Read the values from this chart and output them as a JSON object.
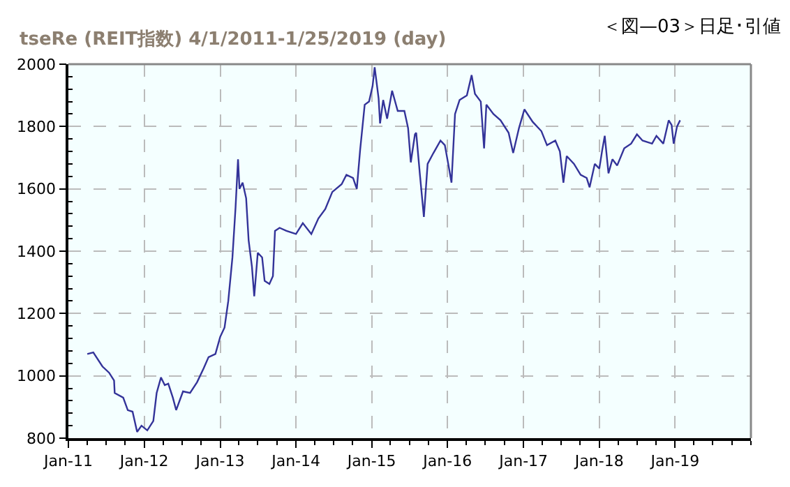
{
  "chart_data": {
    "type": "line",
    "title": "tseRe (REIT指数) 4/1/2011-1/25/2019 (day)",
    "subtitle": "＜図—03＞日足･引値",
    "x": [
      "2011-04-02",
      "2011-05-01",
      "2011-06-14",
      "2011-07-16",
      "2011-08-09",
      "2011-08-12",
      "2011-09-22",
      "2011-10-14",
      "2011-11-06",
      "2011-11-28",
      "2011-12-19",
      "2012-01-16",
      "2012-02-14",
      "2012-03-01",
      "2012-03-22",
      "2012-04-09",
      "2012-04-26",
      "2012-05-18",
      "2012-06-03",
      "2012-07-06",
      "2012-08-09",
      "2012-09-12",
      "2012-10-14",
      "2012-11-06",
      "2012-12-09",
      "2013-01-01",
      "2013-01-22",
      "2013-02-09",
      "2013-03-01",
      "2013-03-16",
      "2013-03-28",
      "2013-04-04",
      "2013-04-19",
      "2013-05-06",
      "2013-05-18",
      "2013-06-03",
      "2013-06-14",
      "2013-07-01",
      "2013-07-22",
      "2013-08-03",
      "2013-08-26",
      "2013-09-12",
      "2013-09-22",
      "2013-10-14",
      "2013-11-16",
      "2014-01-01",
      "2014-02-03",
      "2014-03-16",
      "2014-04-19",
      "2014-05-22",
      "2014-06-25",
      "2014-08-09",
      "2014-09-01",
      "2014-10-03",
      "2014-10-21",
      "2014-11-06",
      "2014-11-28",
      "2014-12-19",
      "2015-01-05",
      "2015-01-15",
      "2015-02-03",
      "2015-02-10",
      "2015-02-25",
      "2015-03-16",
      "2015-04-09",
      "2015-05-06",
      "2015-06-07",
      "2015-06-25",
      "2015-07-08",
      "2015-07-28",
      "2015-08-03",
      "2015-08-21",
      "2015-09-09",
      "2015-09-27",
      "2015-10-25",
      "2015-11-28",
      "2015-12-19",
      "2016-01-07",
      "2016-01-20",
      "2016-02-06",
      "2016-02-28",
      "2016-04-03",
      "2016-04-26",
      "2016-05-12",
      "2016-06-09",
      "2016-06-25",
      "2016-07-06",
      "2016-08-09",
      "2016-09-12",
      "2016-10-21",
      "2016-11-12",
      "2016-12-10",
      "2017-01-05",
      "2017-02-14",
      "2017-03-28",
      "2017-04-24",
      "2017-06-03",
      "2017-06-25",
      "2017-07-12",
      "2017-07-28",
      "2017-09-01",
      "2017-10-03",
      "2017-11-01",
      "2017-11-15",
      "2017-12-10",
      "2018-01-01",
      "2018-01-15",
      "2018-01-27",
      "2018-02-14",
      "2018-03-05",
      "2018-03-28",
      "2018-05-01",
      "2018-06-03",
      "2018-07-01",
      "2018-07-28",
      "2018-09-12",
      "2018-10-03",
      "2018-11-05",
      "2018-12-01",
      "2018-12-15",
      "2018-12-25",
      "2019-01-10",
      "2019-01-25"
    ],
    "series": [
      {
        "color": "#333399",
        "values": [
          1070,
          1075,
          1030,
          1010,
          985,
          945,
          930,
          890,
          885,
          820,
          840,
          825,
          855,
          945,
          995,
          970,
          975,
          930,
          890,
          950,
          945,
          980,
          1025,
          1060,
          1070,
          1125,
          1155,
          1240,
          1380,
          1540,
          1695,
          1600,
          1620,
          1570,
          1435,
          1350,
          1255,
          1395,
          1380,
          1305,
          1295,
          1320,
          1465,
          1475,
          1465,
          1455,
          1490,
          1455,
          1505,
          1535,
          1590,
          1615,
          1645,
          1635,
          1600,
          1725,
          1870,
          1880,
          1930,
          1990,
          1890,
          1810,
          1885,
          1825,
          1915,
          1850,
          1850,
          1795,
          1685,
          1775,
          1780,
          1645,
          1510,
          1680,
          1715,
          1755,
          1740,
          1670,
          1620,
          1840,
          1885,
          1900,
          1965,
          1905,
          1880,
          1730,
          1870,
          1840,
          1820,
          1780,
          1715,
          1795,
          1855,
          1815,
          1785,
          1740,
          1755,
          1720,
          1620,
          1705,
          1680,
          1645,
          1635,
          1605,
          1680,
          1665,
          1725,
          1770,
          1650,
          1695,
          1675,
          1730,
          1745,
          1775,
          1755,
          1745,
          1770,
          1745,
          1820,
          1805,
          1745,
          1800,
          1820
        ]
      }
    ],
    "xlim": [
      "2011-01-01",
      "2020-01-01"
    ],
    "xticks": [
      {
        "value": "2011-01-01",
        "label": "Jan-11"
      },
      {
        "value": "2011-04-01",
        "label": null
      },
      {
        "value": "2011-07-01",
        "label": null
      },
      {
        "value": "2011-10-01",
        "label": null
      },
      {
        "value": "2012-01-01",
        "label": "Jan-12"
      },
      {
        "value": "2012-04-01",
        "label": null
      },
      {
        "value": "2012-07-01",
        "label": null
      },
      {
        "value": "2012-10-01",
        "label": null
      },
      {
        "value": "2013-01-01",
        "label": "Jan-13"
      },
      {
        "value": "2013-04-01",
        "label": null
      },
      {
        "value": "2013-07-01",
        "label": null
      },
      {
        "value": "2013-10-01",
        "label": null
      },
      {
        "value": "2014-01-01",
        "label": "Jan-14"
      },
      {
        "value": "2014-04-01",
        "label": null
      },
      {
        "value": "2014-07-01",
        "label": null
      },
      {
        "value": "2014-10-01",
        "label": null
      },
      {
        "value": "2015-01-01",
        "label": "Jan-15"
      },
      {
        "value": "2015-04-01",
        "label": null
      },
      {
        "value": "2015-07-01",
        "label": null
      },
      {
        "value": "2015-10-01",
        "label": null
      },
      {
        "value": "2016-01-01",
        "label": "Jan-16"
      },
      {
        "value": "2016-04-01",
        "label": null
      },
      {
        "value": "2016-07-01",
        "label": null
      },
      {
        "value": "2016-10-01",
        "label": null
      },
      {
        "value": "2017-01-01",
        "label": "Jan-17"
      },
      {
        "value": "2017-04-01",
        "label": null
      },
      {
        "value": "2017-07-01",
        "label": null
      },
      {
        "value": "2017-10-01",
        "label": null
      },
      {
        "value": "2018-01-01",
        "label": "Jan-18"
      },
      {
        "value": "2018-04-01",
        "label": null
      },
      {
        "value": "2018-07-01",
        "label": null
      },
      {
        "value": "2018-10-01",
        "label": null
      },
      {
        "value": "2019-01-01",
        "label": "Jan-19"
      },
      {
        "value": "2019-04-01",
        "label": null
      },
      {
        "value": "2019-07-01",
        "label": null
      },
      {
        "value": "2019-10-01",
        "label": null
      },
      {
        "value": "2020-01-01",
        "label": null
      }
    ],
    "ylim": [
      800,
      2000
    ],
    "yticks": [
      800,
      {
        "value": 840,
        "label": null
      },
      {
        "value": 880,
        "label": null
      },
      {
        "value": 920,
        "label": null
      },
      {
        "value": 960,
        "label": null
      },
      1000,
      {
        "value": 1040,
        "label": null
      },
      {
        "value": 1080,
        "label": null
      },
      {
        "value": 1120,
        "label": null
      },
      {
        "value": 1160,
        "label": null
      },
      1200,
      {
        "value": 1240,
        "label": null
      },
      {
        "value": 1280,
        "label": null
      },
      {
        "value": 1320,
        "label": null
      },
      {
        "value": 1360,
        "label": null
      },
      1400,
      {
        "value": 1440,
        "label": null
      },
      {
        "value": 1480,
        "label": null
      },
      {
        "value": 1520,
        "label": null
      },
      {
        "value": 1560,
        "label": null
      },
      1600,
      {
        "value": 1640,
        "label": null
      },
      {
        "value": 1680,
        "label": null
      },
      {
        "value": 1720,
        "label": null
      },
      {
        "value": 1760,
        "label": null
      },
      1800,
      {
        "value": 1840,
        "label": null
      },
      {
        "value": 1880,
        "label": null
      },
      {
        "value": 1920,
        "label": null
      },
      {
        "value": 1960,
        "label": null
      },
      2000
    ],
    "grid": true,
    "marker": "none",
    "line_style": "solid"
  }
}
